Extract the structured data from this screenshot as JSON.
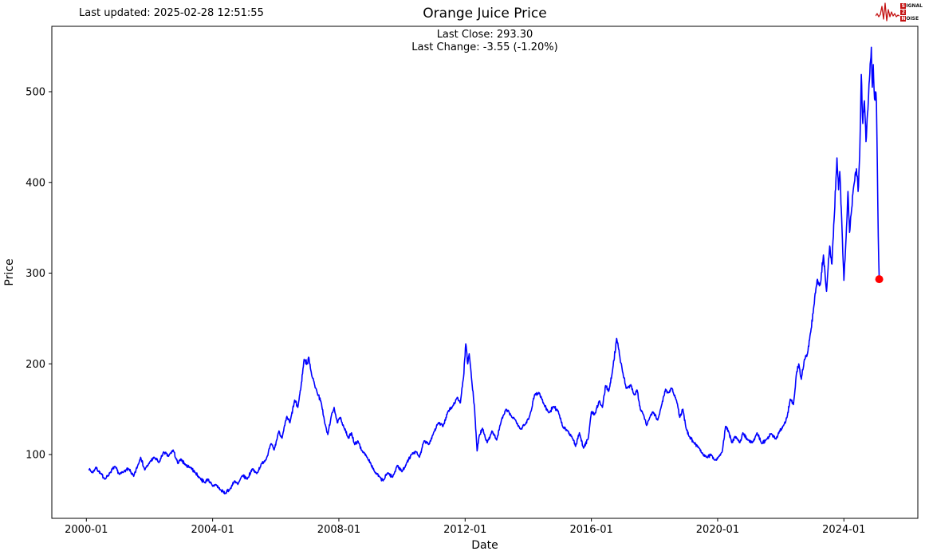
{
  "header": {
    "last_updated": "Last updated: 2025-02-28 12:51:55",
    "title": "Orange Juice Price",
    "subtitle_line1": "Last Close: 293.30",
    "subtitle_line2": "Last Change: -3.55 (-1.20%)"
  },
  "logo": {
    "word1_initial": "S",
    "word1_rest": "IGNAL",
    "word2": "2",
    "word3_initial": "N",
    "word3_rest": "OISE"
  },
  "chart_data": {
    "type": "line",
    "title": "Orange Juice Price",
    "xlabel": "Date",
    "ylabel": "Price",
    "grid": false,
    "legend": "none",
    "line_color": "#0000ff",
    "marker": {
      "color": "#ff0000",
      "radius": 5,
      "note": "red dot on last close"
    },
    "last_close": 293.3,
    "last_change": "-3.55 (-1.20%)",
    "x_ticks": [
      {
        "label": "2000-01",
        "year": 2000
      },
      {
        "label": "2004-01",
        "year": 2004
      },
      {
        "label": "2008-01",
        "year": 2008
      },
      {
        "label": "2012-01",
        "year": 2012
      },
      {
        "label": "2016-01",
        "year": 2016
      },
      {
        "label": "2020-01",
        "year": 2020
      },
      {
        "label": "2024-01",
        "year": 2024
      }
    ],
    "y_ticks": [
      100,
      200,
      300,
      400,
      500
    ],
    "x_domain_years": [
      1998.91,
      2026.34
    ],
    "y_domain": [
      29.7,
      572.1
    ],
    "series": [
      {
        "name": "Orange Juice Price",
        "points": [
          [
            2000.08,
            84
          ],
          [
            2000.2,
            80
          ],
          [
            2000.3,
            86
          ],
          [
            2000.45,
            79
          ],
          [
            2000.6,
            73
          ],
          [
            2000.75,
            80
          ],
          [
            2000.9,
            87
          ],
          [
            2001.05,
            78
          ],
          [
            2001.2,
            82
          ],
          [
            2001.35,
            84
          ],
          [
            2001.5,
            76
          ],
          [
            2001.63,
            88
          ],
          [
            2001.72,
            97
          ],
          [
            2001.85,
            83
          ],
          [
            2002.0,
            91
          ],
          [
            2002.15,
            97
          ],
          [
            2002.3,
            91
          ],
          [
            2002.45,
            103
          ],
          [
            2002.6,
            98
          ],
          [
            2002.75,
            105
          ],
          [
            2002.9,
            90
          ],
          [
            2003.0,
            95
          ],
          [
            2003.15,
            88
          ],
          [
            2003.3,
            86
          ],
          [
            2003.45,
            80
          ],
          [
            2003.6,
            74
          ],
          [
            2003.75,
            69
          ],
          [
            2003.85,
            73
          ],
          [
            2004.0,
            65
          ],
          [
            2004.1,
            67
          ],
          [
            2004.25,
            61
          ],
          [
            2004.4,
            57
          ],
          [
            2004.55,
            62
          ],
          [
            2004.7,
            71
          ],
          [
            2004.8,
            67
          ],
          [
            2004.95,
            77
          ],
          [
            2005.1,
            73
          ],
          [
            2005.25,
            84
          ],
          [
            2005.4,
            79
          ],
          [
            2005.55,
            90
          ],
          [
            2005.7,
            95
          ],
          [
            2005.85,
            112
          ],
          [
            2005.95,
            105
          ],
          [
            2006.1,
            126
          ],
          [
            2006.2,
            118
          ],
          [
            2006.35,
            142
          ],
          [
            2006.45,
            135
          ],
          [
            2006.6,
            160
          ],
          [
            2006.7,
            152
          ],
          [
            2006.8,
            175
          ],
          [
            2006.9,
            205
          ],
          [
            2007.0,
            200
          ],
          [
            2007.05,
            207
          ],
          [
            2007.15,
            186
          ],
          [
            2007.3,
            170
          ],
          [
            2007.45,
            156
          ],
          [
            2007.55,
            135
          ],
          [
            2007.65,
            122
          ],
          [
            2007.75,
            141
          ],
          [
            2007.85,
            152
          ],
          [
            2007.95,
            135
          ],
          [
            2008.05,
            141
          ],
          [
            2008.15,
            131
          ],
          [
            2008.3,
            118
          ],
          [
            2008.4,
            124
          ],
          [
            2008.5,
            111
          ],
          [
            2008.6,
            115
          ],
          [
            2008.75,
            103
          ],
          [
            2008.9,
            97
          ],
          [
            2009.0,
            91
          ],
          [
            2009.15,
            80
          ],
          [
            2009.3,
            75
          ],
          [
            2009.4,
            71
          ],
          [
            2009.55,
            80
          ],
          [
            2009.7,
            75
          ],
          [
            2009.85,
            88
          ],
          [
            2010.0,
            81
          ],
          [
            2010.15,
            91
          ],
          [
            2010.3,
            100
          ],
          [
            2010.45,
            103
          ],
          [
            2010.55,
            97
          ],
          [
            2010.7,
            115
          ],
          [
            2010.85,
            111
          ],
          [
            2011.0,
            124
          ],
          [
            2011.15,
            135
          ],
          [
            2011.3,
            131
          ],
          [
            2011.45,
            147
          ],
          [
            2011.6,
            153
          ],
          [
            2011.75,
            163
          ],
          [
            2011.85,
            157
          ],
          [
            2011.95,
            185
          ],
          [
            2012.02,
            222
          ],
          [
            2012.08,
            200
          ],
          [
            2012.13,
            211
          ],
          [
            2012.2,
            185
          ],
          [
            2012.3,
            150
          ],
          [
            2012.38,
            104
          ],
          [
            2012.45,
            121
          ],
          [
            2012.55,
            129
          ],
          [
            2012.7,
            113
          ],
          [
            2012.85,
            126
          ],
          [
            2013.0,
            116
          ],
          [
            2013.15,
            138
          ],
          [
            2013.3,
            150
          ],
          [
            2013.45,
            143
          ],
          [
            2013.6,
            138
          ],
          [
            2013.75,
            128
          ],
          [
            2013.9,
            133
          ],
          [
            2014.05,
            143
          ],
          [
            2014.2,
            166
          ],
          [
            2014.35,
            168
          ],
          [
            2014.5,
            155
          ],
          [
            2014.65,
            146
          ],
          [
            2014.8,
            153
          ],
          [
            2014.95,
            148
          ],
          [
            2015.1,
            130
          ],
          [
            2015.25,
            126
          ],
          [
            2015.4,
            118
          ],
          [
            2015.5,
            109
          ],
          [
            2015.62,
            124
          ],
          [
            2015.75,
            107
          ],
          [
            2015.9,
            118
          ],
          [
            2016.0,
            147
          ],
          [
            2016.1,
            144
          ],
          [
            2016.25,
            159
          ],
          [
            2016.35,
            152
          ],
          [
            2016.45,
            176
          ],
          [
            2016.55,
            170
          ],
          [
            2016.68,
            195
          ],
          [
            2016.8,
            228
          ],
          [
            2016.9,
            208
          ],
          [
            2017.0,
            190
          ],
          [
            2017.1,
            173
          ],
          [
            2017.25,
            177
          ],
          [
            2017.35,
            166
          ],
          [
            2017.45,
            171
          ],
          [
            2017.55,
            150
          ],
          [
            2017.65,
            144
          ],
          [
            2017.75,
            132
          ],
          [
            2017.85,
            141
          ],
          [
            2017.95,
            147
          ],
          [
            2018.1,
            138
          ],
          [
            2018.2,
            151
          ],
          [
            2018.35,
            172
          ],
          [
            2018.45,
            168
          ],
          [
            2018.55,
            173
          ],
          [
            2018.7,
            159
          ],
          [
            2018.8,
            141
          ],
          [
            2018.9,
            150
          ],
          [
            2019.0,
            129
          ],
          [
            2019.1,
            120
          ],
          [
            2019.25,
            113
          ],
          [
            2019.4,
            108
          ],
          [
            2019.5,
            102
          ],
          [
            2019.65,
            97
          ],
          [
            2019.8,
            100
          ],
          [
            2019.9,
            94
          ],
          [
            2020.05,
            98
          ],
          [
            2020.15,
            104
          ],
          [
            2020.25,
            131
          ],
          [
            2020.35,
            125
          ],
          [
            2020.45,
            113
          ],
          [
            2020.55,
            120
          ],
          [
            2020.7,
            113
          ],
          [
            2020.8,
            124
          ],
          [
            2020.95,
            116
          ],
          [
            2021.1,
            113
          ],
          [
            2021.25,
            124
          ],
          [
            2021.4,
            112
          ],
          [
            2021.55,
            117
          ],
          [
            2021.7,
            123
          ],
          [
            2021.85,
            117
          ],
          [
            2021.95,
            125
          ],
          [
            2022.1,
            133
          ],
          [
            2022.2,
            141
          ],
          [
            2022.3,
            161
          ],
          [
            2022.4,
            155
          ],
          [
            2022.5,
            190
          ],
          [
            2022.57,
            200
          ],
          [
            2022.65,
            183
          ],
          [
            2022.75,
            205
          ],
          [
            2022.85,
            212
          ],
          [
            2022.95,
            235
          ],
          [
            2023.05,
            264
          ],
          [
            2023.15,
            292
          ],
          [
            2023.25,
            287
          ],
          [
            2023.35,
            320
          ],
          [
            2023.45,
            280
          ],
          [
            2023.55,
            330
          ],
          [
            2023.62,
            310
          ],
          [
            2023.7,
            365
          ],
          [
            2023.75,
            405
          ],
          [
            2023.78,
            427
          ],
          [
            2023.83,
            392
          ],
          [
            2023.87,
            412
          ],
          [
            2023.93,
            360
          ],
          [
            2024.0,
            292
          ],
          [
            2024.07,
            340
          ],
          [
            2024.13,
            390
          ],
          [
            2024.18,
            345
          ],
          [
            2024.25,
            372
          ],
          [
            2024.32,
            398
          ],
          [
            2024.4,
            415
          ],
          [
            2024.45,
            390
          ],
          [
            2024.5,
            430
          ],
          [
            2024.55,
            519
          ],
          [
            2024.6,
            465
          ],
          [
            2024.65,
            490
          ],
          [
            2024.7,
            445
          ],
          [
            2024.76,
            480
          ],
          [
            2024.82,
            520
          ],
          [
            2024.87,
            549
          ],
          [
            2024.9,
            505
          ],
          [
            2024.93,
            530
          ],
          [
            2024.97,
            492
          ],
          [
            2025.0,
            500
          ],
          [
            2025.03,
            488
          ],
          [
            2025.06,
            420
          ],
          [
            2025.09,
            340
          ],
          [
            2025.12,
            293.3
          ]
        ]
      }
    ],
    "render_noise": {
      "seed": 7,
      "step_years": 0.012,
      "amplitude_pct": 1.5,
      "amplitude_min": 2
    }
  }
}
